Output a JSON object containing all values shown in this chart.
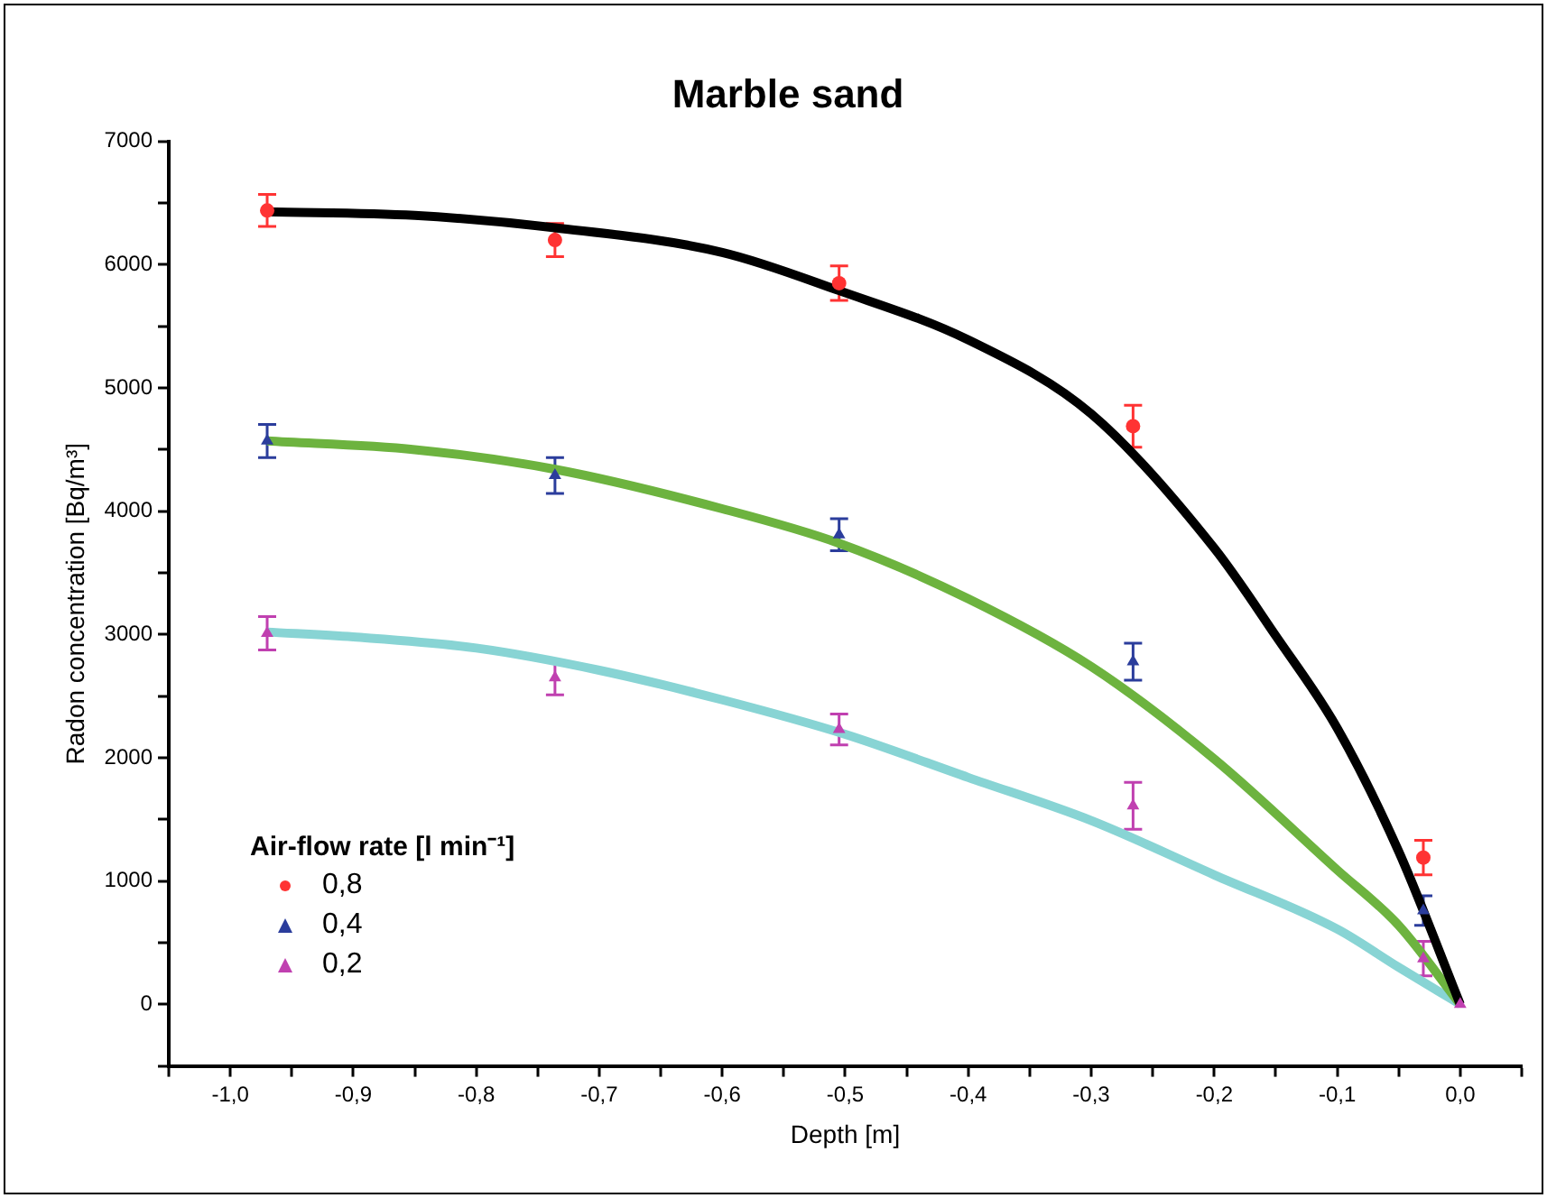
{
  "chart_data": {
    "type": "scatter",
    "title": "Marble sand",
    "xlabel": "Depth [m]",
    "ylabel": "Radon concentration [Bq/m³]",
    "legend_title": "Air-flow rate [l min⁻¹]",
    "xlim": [
      -1.05,
      0.05
    ],
    "xticks": [
      {
        "value": -1.05,
        "label": null
      },
      {
        "value": -1.0,
        "label": "-1,0"
      },
      {
        "value": -0.95,
        "label": null
      },
      {
        "value": -0.9,
        "label": "-0,9"
      },
      {
        "value": -0.85,
        "label": null
      },
      {
        "value": -0.8,
        "label": "-0,8"
      },
      {
        "value": -0.75,
        "label": null
      },
      {
        "value": -0.7,
        "label": "-0,7"
      },
      {
        "value": -0.65,
        "label": null
      },
      {
        "value": -0.6,
        "label": "-0,6"
      },
      {
        "value": -0.55,
        "label": null
      },
      {
        "value": -0.5,
        "label": "-0,5"
      },
      {
        "value": -0.45,
        "label": null
      },
      {
        "value": -0.4,
        "label": "-0,4"
      },
      {
        "value": -0.35,
        "label": null
      },
      {
        "value": -0.3,
        "label": "-0,3"
      },
      {
        "value": -0.25,
        "label": null
      },
      {
        "value": -0.2,
        "label": "-0,2"
      },
      {
        "value": -0.15,
        "label": null
      },
      {
        "value": -0.1,
        "label": "-0,1"
      },
      {
        "value": -0.05,
        "label": null
      },
      {
        "value": 0.0,
        "label": "0,0"
      },
      {
        "value": 0.05,
        "label": null
      }
    ],
    "ylim": [
      -500,
      7000
    ],
    "yticks": [
      {
        "value": -500,
        "label": null
      },
      0,
      {
        "value": 500,
        "label": null
      },
      1000,
      {
        "value": 1500,
        "label": null
      },
      2000,
      {
        "value": 2500,
        "label": null
      },
      3000,
      {
        "value": 3500,
        "label": null
      },
      4000,
      {
        "value": 4500,
        "label": null
      },
      5000,
      {
        "value": 5500,
        "label": null
      },
      6000,
      {
        "value": 6500,
        "label": null
      },
      7000
    ],
    "grid": false,
    "legend": "bottom left",
    "series": [
      {
        "type": "line",
        "color": "#000000",
        "marker": "none",
        "x": [
          -0.97,
          -0.85,
          -0.736,
          -0.6,
          -0.505,
          -0.4,
          -0.3,
          -0.2,
          -0.15,
          -0.1,
          -0.05,
          0
        ],
        "values": [
          6430,
          6400,
          6300,
          6100,
          5790,
          5390,
          4790,
          3700,
          2990,
          2240,
          1240,
          0
        ]
      },
      {
        "type": "line",
        "color": "#6db33f",
        "marker": "none",
        "x": [
          -0.97,
          -0.85,
          -0.736,
          -0.6,
          -0.505,
          -0.4,
          -0.3,
          -0.2,
          -0.1,
          -0.05,
          0
        ],
        "values": [
          4570,
          4500,
          4340,
          4020,
          3740,
          3290,
          2740,
          1990,
          1090,
          640,
          0
        ]
      },
      {
        "type": "line",
        "color": "#88d4d4",
        "marker": "none",
        "x": [
          -0.97,
          -0.9,
          -0.8,
          -0.7,
          -0.6,
          -0.5,
          -0.4,
          -0.3,
          -0.2,
          -0.1,
          -0.05,
          0
        ],
        "values": [
          3020,
          2980,
          2890,
          2710,
          2470,
          2190,
          1840,
          1490,
          1050,
          610,
          300,
          0
        ]
      },
      {
        "name": "0,8",
        "color": "#ff3333",
        "marker": "circle",
        "x": [
          -0.97,
          -0.736,
          -0.505,
          -0.266,
          -0.03
        ],
        "values": [
          6440,
          6200,
          5850,
          4690,
          1190
        ],
        "errors": [
          130,
          135,
          140,
          170,
          140
        ]
      },
      {
        "name": "0,4",
        "color": "#2b3d9c",
        "marker": "triangle",
        "x": [
          -0.97,
          -0.736,
          -0.505,
          -0.266,
          -0.03
        ],
        "values": [
          4570,
          4290,
          3810,
          2780,
          760
        ],
        "errors": [
          135,
          145,
          130,
          150,
          120
        ]
      },
      {
        "name": "0,2",
        "color": "#c040b0",
        "marker": "triangle",
        "x": [
          -0.97,
          -0.736,
          -0.505,
          -0.266,
          -0.03,
          0
        ],
        "values": [
          3010,
          2650,
          2230,
          1610,
          370,
          0
        ],
        "errors": [
          135,
          140,
          125,
          190,
          140,
          null
        ]
      }
    ]
  }
}
